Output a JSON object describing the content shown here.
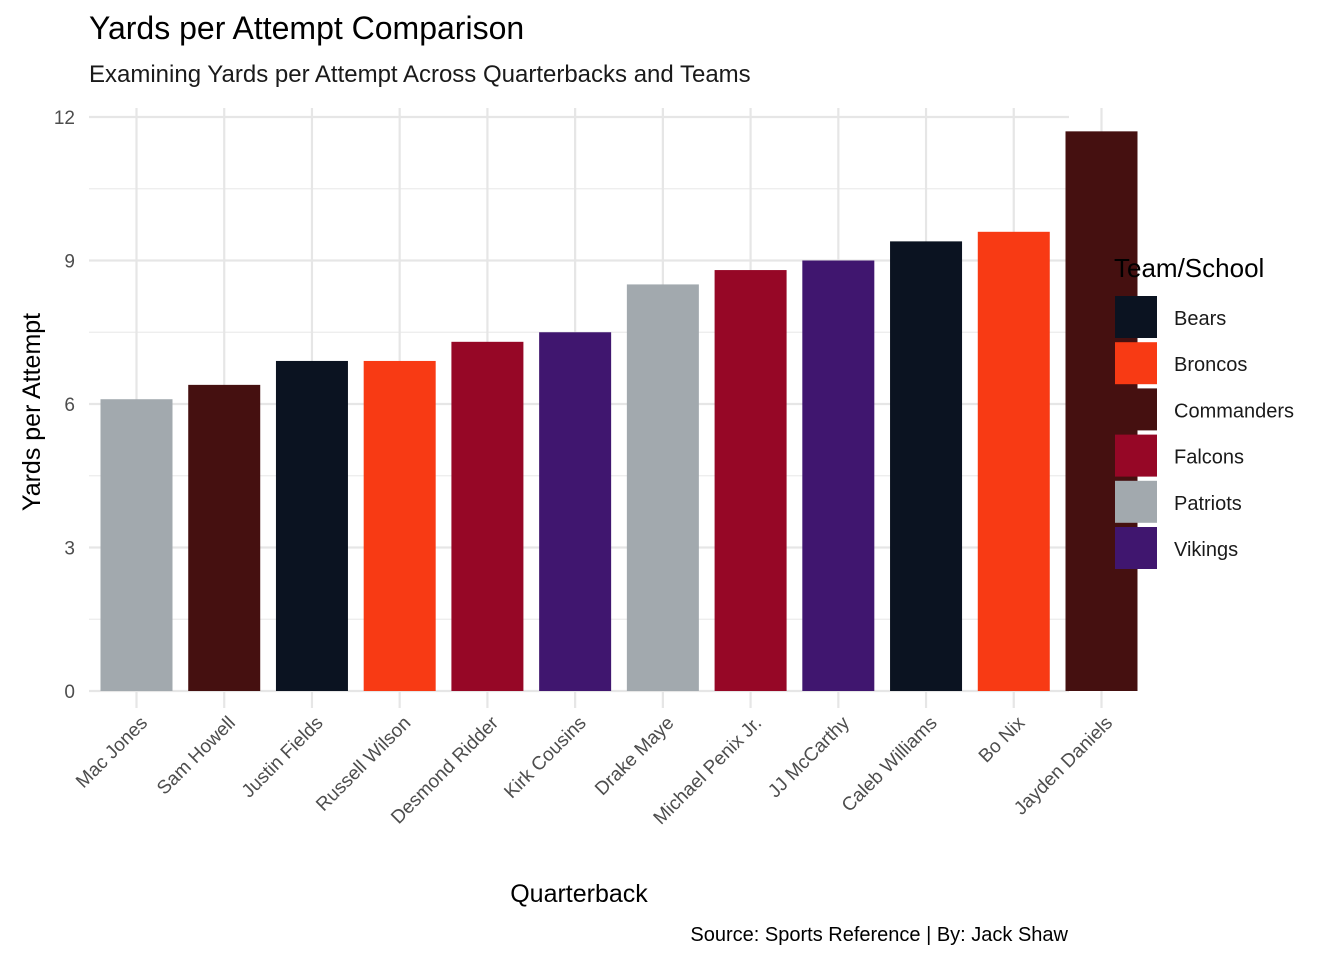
{
  "chart_data": {
    "type": "bar",
    "title": "Yards per Attempt Comparison",
    "subtitle": "Examining Yards per Attempt Across Quarterbacks and Teams",
    "xlabel": "Quarterback",
    "ylabel": "Yards per Attempt",
    "caption": "Source: Sports Reference | By: Jack Shaw",
    "legend_title": "Team/School",
    "legend_position": "right",
    "grid": true,
    "ylim": [
      0,
      12
    ],
    "yticks": [
      0,
      3,
      6,
      9,
      12
    ],
    "categories": [
      "Mac Jones",
      "Sam Howell",
      "Justin Fields",
      "Russell Wilson",
      "Desmond Ridder",
      "Kirk Cousins",
      "Drake Maye",
      "Michael Penix Jr.",
      "JJ McCarthy",
      "Caleb Williams",
      "Bo Nix",
      "Jayden Daniels"
    ],
    "values": [
      6.1,
      6.4,
      6.9,
      6.9,
      7.3,
      7.5,
      8.5,
      8.8,
      9.0,
      9.4,
      9.6,
      11.7
    ],
    "teams": [
      "Patriots",
      "Commanders",
      "Bears",
      "Broncos",
      "Falcons",
      "Vikings",
      "Patriots",
      "Falcons",
      "Vikings",
      "Bears",
      "Broncos",
      "Commanders"
    ],
    "legend": [
      {
        "name": "Bears",
        "color": "#0b1321"
      },
      {
        "name": "Broncos",
        "color": "#f83a14"
      },
      {
        "name": "Commanders",
        "color": "#451010"
      },
      {
        "name": "Falcons",
        "color": "#960726"
      },
      {
        "name": "Patriots",
        "color": "#a2a9ae"
      },
      {
        "name": "Vikings",
        "color": "#40166f"
      }
    ]
  }
}
